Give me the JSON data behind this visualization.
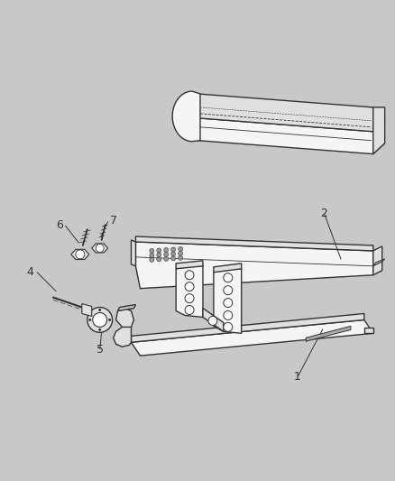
{
  "background_color": "#c8c8c8",
  "line_color": "#333333",
  "face_light": "#f5f5f5",
  "face_mid": "#e0e0e0",
  "face_dark": "#c8c8c8",
  "label_color": "#333333",
  "figsize": [
    4.38,
    5.33
  ],
  "dpi": 100,
  "label_fontsize": 9
}
